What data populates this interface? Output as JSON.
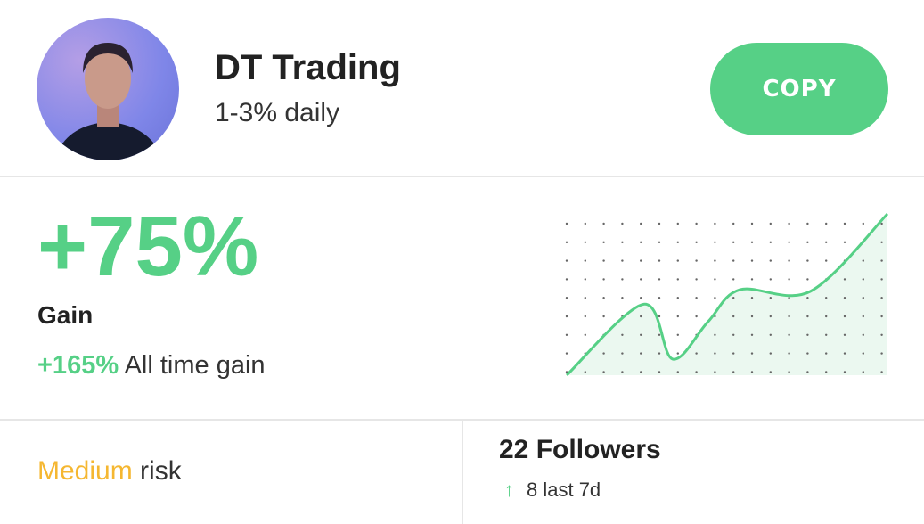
{
  "profile": {
    "name": "DT Trading",
    "subtitle": "1-3% daily",
    "avatar_icon": "trader-portrait"
  },
  "actions": {
    "copy_label": "COPY"
  },
  "performance": {
    "gain_value": "+75%",
    "gain_label": "Gain",
    "all_time_value": "+165%",
    "all_time_label": "All time gain"
  },
  "sparkline": {
    "levels": [
      [
        0,
        0
      ],
      [
        0.24,
        0.44
      ],
      [
        0.33,
        0.1
      ],
      [
        0.44,
        0.33
      ],
      [
        0.54,
        0.53
      ],
      [
        0.76,
        0.52
      ],
      [
        1,
        1
      ]
    ],
    "color": "#56d086",
    "fill": "#e6f6ec"
  },
  "risk": {
    "level": "Medium",
    "suffix": "risk",
    "color": "#f5b731"
  },
  "followers": {
    "title": "22 Followers",
    "change": "8 last 7d",
    "arrow_icon": "arrow-up-icon"
  },
  "colors": {
    "accent": "#56d086"
  }
}
